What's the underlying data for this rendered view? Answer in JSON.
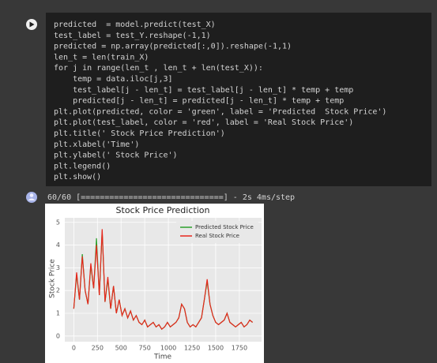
{
  "code_cell": {
    "lines": [
      "predicted  = model.predict(test_X)",
      "test_label = test_Y.reshape(-1,1)",
      "predicted = np.array(predicted[:,0]).reshape(-1,1)",
      "len_t = len(train_X)",
      "for j in range(len_t , len_t + len(test_X)):",
      "    temp = data.iloc[j,3]",
      "    test_label[j - len_t] = test_label[j - len_t] * temp + temp",
      "    predicted[j - len_t] = predicted[j - len_t] * temp + temp",
      "plt.plot(predicted, color = 'green', label = 'Predicted  Stock Price')",
      "plt.plot(test_label, color = 'red', label = 'Real Stock Price')",
      "plt.title(' Stock Price Prediction')",
      "plt.xlabel('Time')",
      "plt.ylabel(' Stock Price')",
      "plt.legend()",
      "plt.show()"
    ]
  },
  "output": {
    "progress": "60/60 [==============================] - 2s 4ms/step"
  },
  "chart_data": {
    "type": "line",
    "title": "Stock Price Prediction",
    "xlabel": "Time",
    "ylabel": "Stock Price",
    "x": [
      0,
      30,
      60,
      90,
      120,
      150,
      180,
      210,
      240,
      270,
      300,
      330,
      360,
      390,
      420,
      450,
      480,
      510,
      540,
      570,
      600,
      630,
      660,
      690,
      720,
      750,
      780,
      810,
      840,
      870,
      900,
      930,
      960,
      990,
      1020,
      1050,
      1080,
      1110,
      1140,
      1170,
      1200,
      1230,
      1260,
      1290,
      1320,
      1350,
      1380,
      1410,
      1440,
      1470,
      1500,
      1530,
      1560,
      1590,
      1620,
      1650,
      1680,
      1710,
      1740,
      1770,
      1800,
      1830,
      1860,
      1890
    ],
    "series": [
      {
        "name": "Predicted  Stock Price",
        "color": "#2ca02c",
        "values": [
          1.2,
          2.7,
          1.6,
          3.6,
          2.0,
          1.4,
          3.1,
          2.1,
          4.3,
          1.8,
          4.6,
          1.5,
          2.5,
          1.2,
          2.2,
          1.0,
          1.6,
          0.9,
          1.2,
          0.8,
          1.1,
          0.7,
          0.9,
          0.6,
          0.5,
          0.7,
          0.4,
          0.5,
          0.6,
          0.4,
          0.5,
          0.3,
          0.4,
          0.6,
          0.4,
          0.5,
          0.6,
          0.8,
          1.4,
          1.2,
          0.6,
          0.4,
          0.5,
          0.4,
          0.6,
          0.8,
          1.6,
          2.4,
          1.4,
          0.9,
          0.6,
          0.5,
          0.6,
          0.7,
          1.0,
          0.6,
          0.5,
          0.4,
          0.5,
          0.6,
          0.4,
          0.5,
          0.7,
          0.6
        ]
      },
      {
        "name": "Real Stock Price",
        "color": "#e8261c",
        "values": [
          1.2,
          2.8,
          1.6,
          3.5,
          2.0,
          1.4,
          3.2,
          2.1,
          4.0,
          1.8,
          4.7,
          1.5,
          2.6,
          1.2,
          2.2,
          1.0,
          1.6,
          0.9,
          1.2,
          0.8,
          1.1,
          0.7,
          0.9,
          0.6,
          0.5,
          0.7,
          0.4,
          0.5,
          0.6,
          0.4,
          0.5,
          0.3,
          0.4,
          0.6,
          0.4,
          0.5,
          0.6,
          0.8,
          1.4,
          1.2,
          0.6,
          0.4,
          0.5,
          0.4,
          0.6,
          0.8,
          1.6,
          2.5,
          1.4,
          0.9,
          0.6,
          0.5,
          0.6,
          0.7,
          1.0,
          0.6,
          0.5,
          0.4,
          0.5,
          0.6,
          0.4,
          0.5,
          0.7,
          0.6
        ]
      }
    ],
    "xlim": [
      -95,
      1985
    ],
    "ylim": [
      -0.25,
      5.2
    ],
    "xticks": [
      0,
      250,
      500,
      750,
      1000,
      1250,
      1500,
      1750
    ],
    "yticks": [
      0,
      1,
      2,
      3,
      4,
      5
    ],
    "grid": true,
    "legend": "upper right"
  }
}
